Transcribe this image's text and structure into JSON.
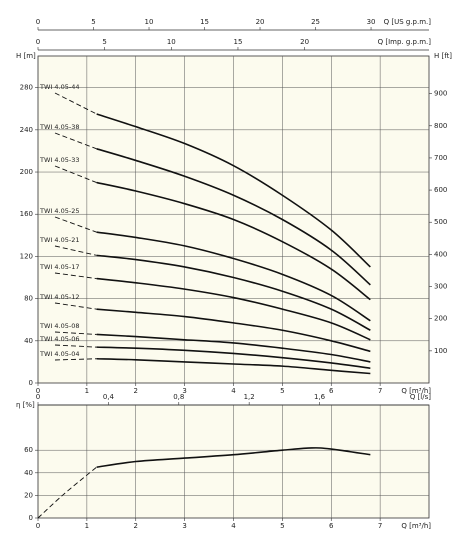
{
  "chart_data": [
    {
      "type": "line",
      "y_label": "H [m]",
      "y2_label": "H [ft]",
      "x_label": "Q [m³/h]",
      "grid": true,
      "color": "#111111",
      "top_axes": [
        {
          "label": "Q [US g.p.m.]",
          "lim": [
            0,
            35.22
          ],
          "ticks": [
            0,
            5,
            10,
            15,
            20,
            25,
            30
          ]
        },
        {
          "label": "Q [Imp. g.p.m.]",
          "lim": [
            0,
            29.33
          ],
          "ticks": [
            0,
            5,
            10,
            15,
            20
          ]
        }
      ],
      "xlim": [
        0,
        8
      ],
      "xticks": [
        0,
        1,
        2,
        3,
        4,
        5,
        6,
        7
      ],
      "ylim": [
        0,
        310
      ],
      "yticks": [
        0,
        40,
        80,
        120,
        160,
        200,
        240,
        280
      ],
      "y2lim": [
        0,
        1017
      ],
      "y2ticks": [
        100,
        200,
        300,
        400,
        500,
        600,
        700,
        800,
        900
      ],
      "series": [
        {
          "name": "TWI 4.05-44",
          "x": [
            1.2,
            2,
            3,
            4,
            5,
            6,
            6.8
          ],
          "values": [
            255,
            243,
            227,
            206,
            178,
            145,
            110
          ]
        },
        {
          "name": "TWI 4.05-38",
          "x": [
            1.2,
            2,
            3,
            4,
            5,
            6,
            6.8
          ],
          "values": [
            222,
            211,
            196,
            178,
            155,
            126,
            93
          ]
        },
        {
          "name": "TWI 4.05-33",
          "x": [
            1.2,
            2,
            3,
            4,
            5,
            6,
            6.8
          ],
          "values": [
            190,
            182,
            170,
            155,
            134,
            108,
            79
          ]
        },
        {
          "name": "TWI 4.05-25",
          "x": [
            1.2,
            2,
            3,
            4,
            5,
            6,
            6.8
          ],
          "values": [
            143,
            138,
            130,
            118,
            103,
            83,
            59
          ]
        },
        {
          "name": "TWI 4.05-21",
          "x": [
            1.2,
            2,
            3,
            4,
            5,
            6,
            6.8
          ],
          "values": [
            121,
            117,
            110,
            100,
            87,
            70,
            50
          ]
        },
        {
          "name": "TWI 4.05-17",
          "x": [
            1.2,
            2,
            3,
            4,
            5,
            6,
            6.8
          ],
          "values": [
            99,
            95,
            89,
            81,
            70,
            57,
            41
          ]
        },
        {
          "name": "TWI 4.05-12",
          "x": [
            1.2,
            2,
            3,
            4,
            5,
            6,
            6.8
          ],
          "values": [
            70,
            67,
            63,
            57,
            50,
            40,
            30
          ]
        },
        {
          "name": "TWI 4.05-08",
          "x": [
            1.2,
            2,
            3,
            4,
            5,
            6,
            6.8
          ],
          "values": [
            46,
            44,
            41,
            38,
            33,
            27,
            20
          ]
        },
        {
          "name": "TWI 4.05-06",
          "x": [
            1.2,
            2,
            3,
            4,
            5,
            6,
            6.8
          ],
          "values": [
            34,
            33,
            31,
            28,
            24,
            19,
            14
          ]
        },
        {
          "name": "TWI 4.05-04",
          "x": [
            1.2,
            2,
            3,
            4,
            5,
            6,
            6.8
          ],
          "values": [
            23,
            22,
            20,
            18,
            16,
            12,
            9
          ]
        }
      ]
    },
    {
      "type": "line",
      "y_label": "η [%]",
      "x_label": "Q [m³/h]",
      "grid": true,
      "color": "#111111",
      "top_axes": [
        {
          "label": "Q [l/s]",
          "lim": [
            0,
            2.222
          ],
          "ticks": [
            0,
            {
              "value": 0.4,
              "label": "0,4"
            },
            {
              "value": 0.8,
              "label": "0,8"
            },
            {
              "value": 1.2,
              "label": "1,2"
            },
            {
              "value": 1.6,
              "label": "1,6"
            }
          ]
        }
      ],
      "xlim": [
        0,
        8
      ],
      "xticks": [
        0,
        1,
        2,
        3,
        4,
        5,
        6,
        7
      ],
      "ylim": [
        0,
        100
      ],
      "yticks": [
        0,
        20,
        40,
        60
      ],
      "series": [
        {
          "dashed": true,
          "x": [
            0,
            0.5,
            1,
            1.2
          ],
          "values": [
            0,
            20,
            38,
            45
          ]
        },
        {
          "x": [
            1.2,
            2,
            3,
            4,
            5,
            5.6,
            6,
            6.8
          ],
          "values": [
            45,
            50,
            53,
            56,
            60,
            62,
            61,
            56
          ]
        }
      ]
    }
  ]
}
